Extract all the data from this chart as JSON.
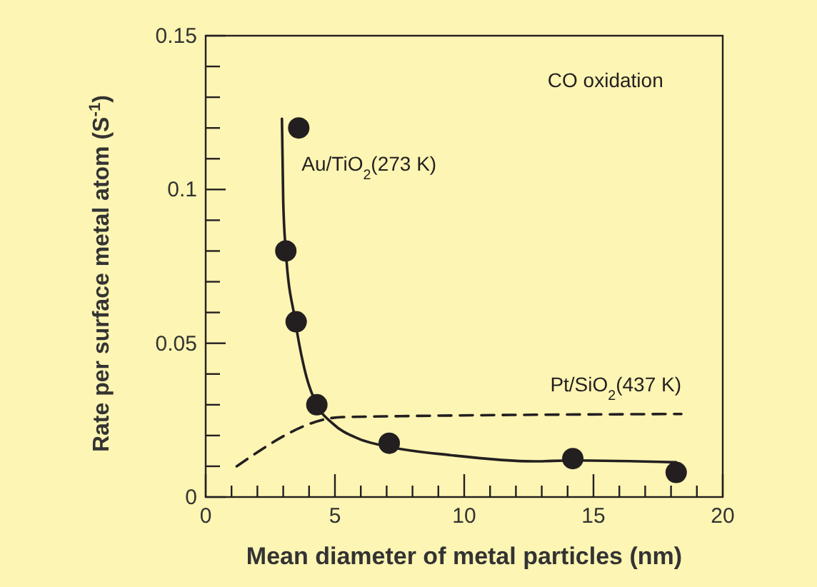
{
  "chart_data": {
    "type": "scatter",
    "xlabel": "Mean diameter of metal particles (nm)",
    "ylabel": "Rate per surface metal atom (S$^{-1}$)",
    "annotations": [
      "CO oxidation"
    ],
    "xlim": [
      0,
      20
    ],
    "ylim": [
      0,
      0.15
    ],
    "xticks": [
      0,
      {
        "value": 1,
        "label": null
      },
      {
        "value": 2,
        "label": null
      },
      {
        "value": 3,
        "label": null
      },
      {
        "value": 4,
        "label": null
      },
      5,
      {
        "value": 6,
        "label": null
      },
      {
        "value": 7,
        "label": null
      },
      {
        "value": 8,
        "label": null
      },
      {
        "value": 9,
        "label": null
      },
      10,
      {
        "value": 11,
        "label": null
      },
      {
        "value": 12,
        "label": null
      },
      {
        "value": 13,
        "label": null
      },
      {
        "value": 14,
        "label": null
      },
      15,
      {
        "value": 16,
        "label": null
      },
      {
        "value": 17,
        "label": null
      },
      {
        "value": 18,
        "label": null
      },
      {
        "value": 19,
        "label": null
      },
      20
    ],
    "yticks": [
      0,
      {
        "value": 0.01,
        "label": null
      },
      {
        "value": 0.02,
        "label": null
      },
      {
        "value": 0.03,
        "label": null
      },
      {
        "value": 0.04,
        "label": null
      },
      0.05,
      {
        "value": 0.06,
        "label": null
      },
      {
        "value": 0.07,
        "label": null
      },
      {
        "value": 0.08,
        "label": null
      },
      {
        "value": 0.09,
        "label": null
      },
      0.1,
      {
        "value": 0.11,
        "label": null
      },
      {
        "value": 0.12,
        "label": null
      },
      {
        "value": 0.13,
        "label": null
      },
      {
        "value": 0.14,
        "label": null
      },
      0.15
    ],
    "grid": false,
    "series": [
      {
        "name": "Au/TiO$_{2}$(273 K)",
        "color": "#231f20",
        "marker": "circle",
        "x": [
          3.6,
          3.1,
          3.5,
          4.3,
          7.1,
          14.2,
          18.2
        ],
        "values": [
          0.12,
          0.08,
          0.057,
          0.03,
          0.0175,
          0.0125,
          0.008
        ]
      },
      {
        "type": "line",
        "color": "#231f20",
        "line_style": "solid",
        "x": [
          2.95,
          3.0,
          3.1,
          3.45,
          3.9,
          4.3,
          4.9,
          5.9,
          7.1,
          9.5,
          12.7,
          14.2,
          18.2
        ],
        "values": [
          0.123,
          0.096,
          0.08,
          0.058,
          0.039,
          0.03,
          0.024,
          0.019,
          0.0163,
          0.0136,
          0.0116,
          0.0119,
          0.0113
        ]
      },
      {
        "type": "line",
        "name": "Pt/SiO$_{2}$(437 K)",
        "color": "#231f20",
        "line_style": "dashed",
        "x": [
          1.2,
          5.3,
          18.4
        ],
        "values": [
          0.01,
          0.026,
          0.027
        ]
      }
    ]
  }
}
